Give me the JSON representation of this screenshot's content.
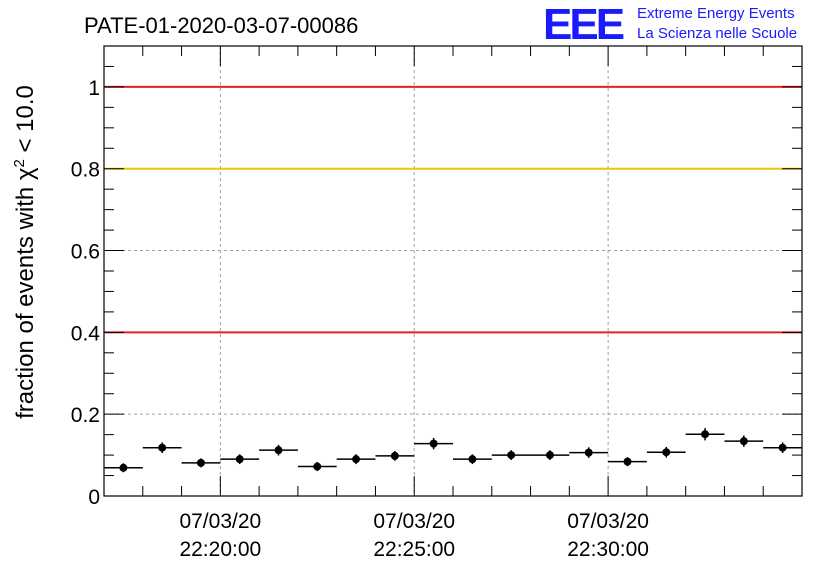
{
  "chart_data": {
    "type": "scatter",
    "title": "PATE-01-2020-03-07-00086",
    "ylabel": {
      "prefix": "fraction of events with ",
      "symbol": "χ",
      "superscript": "2",
      "suffix": " < 10.0"
    },
    "ylim": [
      0,
      1.1
    ],
    "yticks": [
      {
        "v": 0,
        "label": "0"
      },
      {
        "v": 0.2,
        "label": "0.2"
      },
      {
        "v": 0.4,
        "label": "0.4"
      },
      {
        "v": 0.6,
        "label": "0.6"
      },
      {
        "v": 0.8,
        "label": "0.8"
      },
      {
        "v": 1.0,
        "label": "1"
      }
    ],
    "xlim": [
      "2020-03-07 22:17:00",
      "2020-03-07 22:35:00"
    ],
    "xticks": [
      {
        "t": "2020-03-07 22:20:00",
        "date": "07/03/20",
        "time": "22:20:00"
      },
      {
        "t": "2020-03-07 22:25:00",
        "date": "07/03/20",
        "time": "22:25:00"
      },
      {
        "t": "2020-03-07 22:30:00",
        "date": "07/03/20",
        "time": "22:30:00"
      }
    ],
    "grid": true,
    "reference_lines": [
      {
        "y": 1.0,
        "color": "#e8201c"
      },
      {
        "y": 0.8,
        "color": "#f5c400"
      },
      {
        "y": 0.4,
        "color": "#e8201c"
      }
    ],
    "points": [
      {
        "t": "2020-03-07 22:17:30",
        "y": 0.069,
        "err": 0.011
      },
      {
        "t": "2020-03-07 22:18:30",
        "y": 0.118,
        "err": 0.013
      },
      {
        "t": "2020-03-07 22:19:30",
        "y": 0.081,
        "err": 0.011
      },
      {
        "t": "2020-03-07 22:20:30",
        "y": 0.09,
        "err": 0.012
      },
      {
        "t": "2020-03-07 22:21:30",
        "y": 0.112,
        "err": 0.013
      },
      {
        "t": "2020-03-07 22:22:30",
        "y": 0.072,
        "err": 0.011
      },
      {
        "t": "2020-03-07 22:23:30",
        "y": 0.09,
        "err": 0.012
      },
      {
        "t": "2020-03-07 22:24:30",
        "y": 0.098,
        "err": 0.012
      },
      {
        "t": "2020-03-07 22:25:30",
        "y": 0.128,
        "err": 0.014
      },
      {
        "t": "2020-03-07 22:26:30",
        "y": 0.09,
        "err": 0.012
      },
      {
        "t": "2020-03-07 22:27:30",
        "y": 0.1,
        "err": 0.012
      },
      {
        "t": "2020-03-07 22:28:30",
        "y": 0.1,
        "err": 0.012
      },
      {
        "t": "2020-03-07 22:29:30",
        "y": 0.106,
        "err": 0.013
      },
      {
        "t": "2020-03-07 22:30:30",
        "y": 0.084,
        "err": 0.011
      },
      {
        "t": "2020-03-07 22:31:30",
        "y": 0.107,
        "err": 0.013
      },
      {
        "t": "2020-03-07 22:32:30",
        "y": 0.151,
        "err": 0.015
      },
      {
        "t": "2020-03-07 22:33:30",
        "y": 0.134,
        "err": 0.014
      },
      {
        "t": "2020-03-07 22:34:30",
        "y": 0.118,
        "err": 0.013
      }
    ],
    "point_color": "#000000",
    "colors": {
      "grid": "#a0a0a0",
      "logo": "#1a1aff"
    }
  },
  "logo": {
    "mark": "EEE",
    "line1": "Extreme Energy Events",
    "line2": "La Scienza nelle Scuole"
  }
}
